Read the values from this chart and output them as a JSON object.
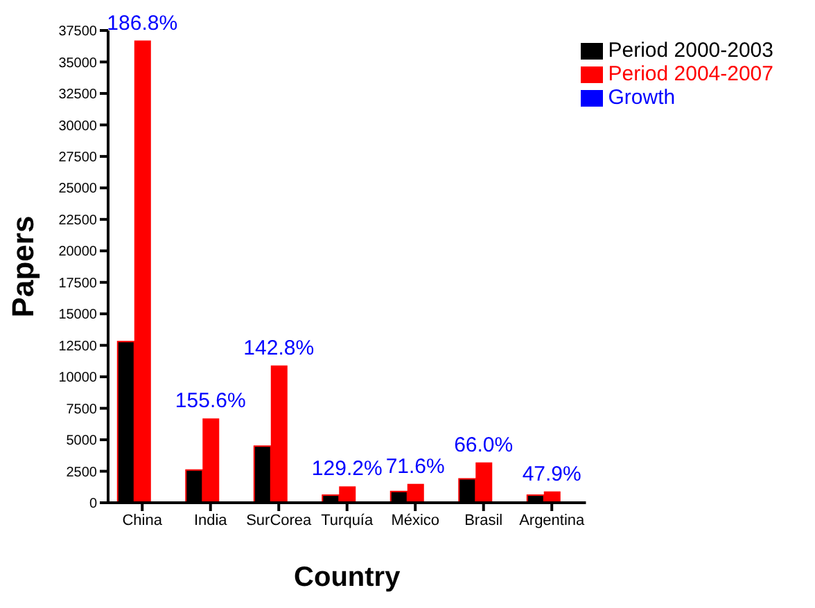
{
  "chart_data": {
    "type": "bar",
    "xlabel": "Country",
    "ylabel": "Papers",
    "categories": [
      "China",
      "India",
      "SurCorea",
      "Turquía",
      "México",
      "Brasil",
      "Argentina"
    ],
    "series": [
      {
        "name": "Period 2000-2003",
        "color": "#000000",
        "values": [
          12800,
          2600,
          4500,
          600,
          900,
          1900,
          600
        ]
      },
      {
        "name": "Period 2004-2007",
        "color": "#ff0000",
        "values": [
          36700,
          6700,
          10900,
          1300,
          1500,
          3200,
          900
        ]
      },
      {
        "name": "Growth",
        "color": "#0000ff",
        "values": [
          null,
          null,
          null,
          null,
          null,
          null,
          null
        ]
      }
    ],
    "annotations": [
      {
        "text": "186.8%",
        "x": "China",
        "y": 36700
      },
      {
        "text": "155.6%",
        "x": "India",
        "y": 6700
      },
      {
        "text": "142.8%",
        "x": "SurCorea",
        "y": 10900
      },
      {
        "text": "129.2%",
        "x": "Turquía",
        "y": 1300
      },
      {
        "text": "71.6%",
        "x": "México",
        "y": 1500
      },
      {
        "text": "66.0%",
        "x": "Brasil",
        "y": 3200
      },
      {
        "text": "47.9%",
        "x": "Argentina",
        "y": 900
      }
    ],
    "ylim": [
      0,
      37500
    ],
    "yticks": [
      0,
      2500,
      5000,
      7500,
      10000,
      12500,
      15000,
      17500,
      20000,
      22500,
      25000,
      27500,
      30000,
      32500,
      35000,
      37500
    ],
    "grid": false,
    "legend": "top right"
  }
}
